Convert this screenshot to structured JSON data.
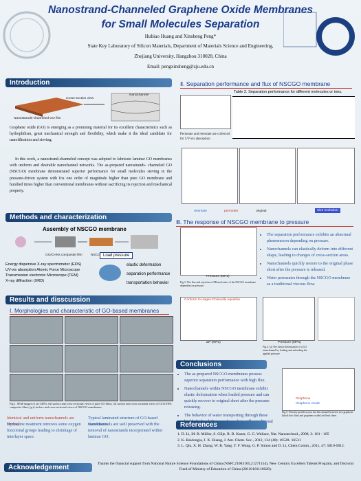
{
  "header": {
    "title_lines": [
      "Nanostrand-Channeled Graphene Oxide Membranes",
      "for Small Molecules Separation"
    ],
    "authors": "Hubiao Huang and Xinsheng Peng*",
    "affiliation": "State Key Laboratory of Silicon Materials, Department of Materials Science and Engineering,",
    "address": "Zhejiang University, Hangzhou 310028, China",
    "email": "Email: pengxinsheng@zju.edu.cn"
  },
  "introduction": {
    "heading": "Introduction",
    "figure_labels": [
      "Cross-section view",
      "Nanochannel",
      "Nanostrands-channeled GO film"
    ],
    "paragraphs": [
      "Graphene oxide (GO) is emerging as a promising material for its excellent characteristics such as hydrophilism, great mechanical strength and flexibility, which make it the ideal candidate for nanofiltration and sieving.",
      "In this work, a nanostrand-channeled concept was adopted to fabricate laminar GO membranes with uniform and desirable nanochannel networks. The as-prepared nanostrands- channeled GO (NSCGO) membrane demonstrated superior performance for small molecules sieving in the pressure-driven system with fox one order of magnitude higher than pure GO membrane and hundred times higher than conventional membranes without sacrificing its rejection and mechanical property."
    ]
  },
  "methods": {
    "heading": "Methods and characterization",
    "assembly_title": "Assembly of NSCGO membrane",
    "figure_labels": [
      "GO/CHNs composite film",
      "NSCGO membrane"
    ],
    "techniques": [
      "Energy dispersive X-ray spectrometer (EDS)",
      "UV-vis absorption  Atomic Force Microscope",
      "Transmission electronic Microscope (TEM)",
      "X-ray diffraction (XRD)"
    ],
    "load_label": "Load pressure",
    "outcomes": [
      "elastic deformation",
      "separation performance",
      "transportation behavior"
    ]
  },
  "results": {
    "heading": "Results and disscussion",
    "subheading": "Ⅰ. Morphologies and characteristic of GO-based membranes",
    "caption": "Fig.1. SEM images of (a) CHNs; the surface and cross-sectional views of pure GO films; (d) surface and cross-sectional views of GO/CHNs composite films; (g-i) surface and cross-sectional views of NSCGO membranes.",
    "bullets": [
      "Identical and uniform nanochannels are formed.",
      "Hydrazine treatment removes some oxygen functional groups leading to shrinkage of interlayer space.",
      "Typical laminated structure of GO-based membranes.",
      "Nanochannels are well preserved with the removal of nanostrands incorporated within laminar GO."
    ]
  },
  "section2": {
    "heading": "Ⅱ. Separation performance  and flux of NSCGO membrane",
    "table_title": "Table 2. Separation performance for different  molecules or ions.",
    "note": "Permeate and retentate are collected for UV-vis absorption",
    "legend": [
      "retentate",
      "permeate",
      "original"
    ],
    "highlight": "Size exclusion"
  },
  "section3": {
    "heading": "Ⅲ. The response of NSCGO membrane to  pressure",
    "axis_labels": [
      "Pressure (MPa)",
      "ΔP (MPa)",
      "Pressure (MPa)"
    ],
    "annotation": "Conform to Hagen-Poiseuille equation",
    "captions": [
      "Fig.3. The flux and rejection of EB molecules of the NSCGO membrane dependent on pressure.",
      "Fig.4. (a) The elastic deformation of a GO nanochannel by loading and unloading the applied pressure."
    ],
    "bullets": [
      "The separation performance exhibits an abnormal phenomenon depending on pressure.",
      "Nanochannels can elastically deform into different shape, leading to changes of cross-section areas.",
      "Nanochannels quickly restore to the original phase short after the pressure is released.",
      "Water permeates through the NSCGO membrane as a traditional viscous flow."
    ]
  },
  "conclusions": {
    "heading": "Conclusions",
    "bullets": [
      "The as-prepared NSCGO membranes possess superior separation performance with high flux.",
      "Nanochannels within NSCGO membrane exhibit elastic deformation when loaded pressure and can quickly recover to original short after the pressure releasing.",
      "The behavior of water transporting through these highly hydrophilic nanochannels is still a traditional viscous flow."
    ],
    "legend": [
      "Graphene",
      "Graphene Oxide"
    ],
    "caption": "Fig.5. Velocity profile across the flat channel between two graphene (black dots line) and graphene oxide (red line) sheet."
  },
  "references": {
    "heading": "References",
    "items": [
      "1. D. Li, M. B. Müller, S. Gilje, R. B. Kaner, G. G. Wallace, Nat. Nanotechnol., 2008, 3: 101 - 105",
      "2. K. Raidongia, J. X. Huang, J. Am. Chem. Soc., 2012, 134 (40): 16528- 16531",
      "3. L. Qiu, X. H. Zhang, W. R. Yang, Y. F. Wang, G. P. Simon and D. Li, Chem.Comm., 2011, 47: 5810-5812."
    ]
  },
  "acknowledgement": {
    "heading": "Acknowledgement",
    "text": "Thanks the financial support from National Nature Science Foundations of China (NSFC21003105,21271154), New Century Excellent Talents Program, and Doctoral Fund of Ministry of Education of China (20110101110028)."
  }
}
